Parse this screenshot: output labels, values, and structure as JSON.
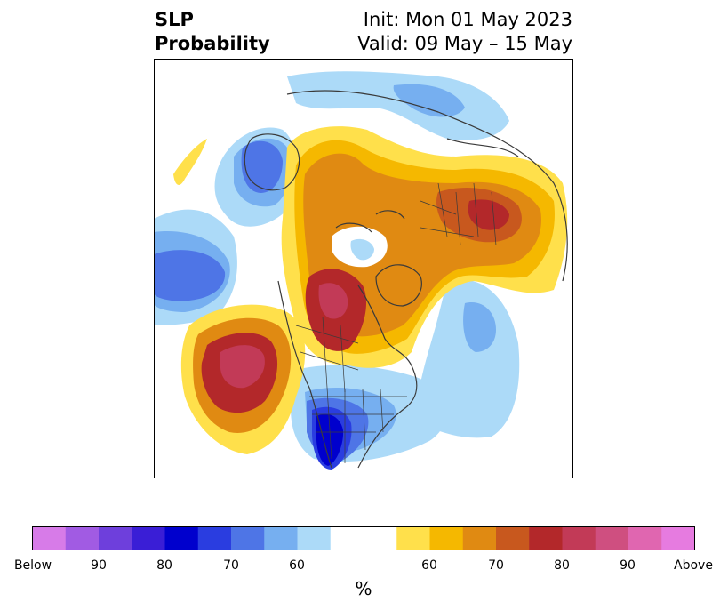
{
  "title": {
    "line1": "SLP",
    "line2": "Probability"
  },
  "info": {
    "init": "Init: Mon 01 May 2023",
    "valid": "Valid: 09 May – 15 May"
  },
  "colorbar": {
    "units": "%",
    "tick_labels": [
      "Below",
      "90",
      "80",
      "70",
      "60",
      "60",
      "70",
      "80",
      "90",
      "Above"
    ],
    "colors": [
      "#d77be8",
      "#a15be3",
      "#6e3fdc",
      "#3a1ed6",
      "#0000cd",
      "#2a3de0",
      "#4e75e6",
      "#76aff0",
      "#acdaf8",
      "#ffffff",
      "#ffffff",
      "#ffe04b",
      "#f5b800",
      "#e08a12",
      "#c8581e",
      "#b3282a",
      "#c23a57",
      "#cf4f80",
      "#e066b0",
      "#e67be0"
    ]
  },
  "legend_colors": {
    "below_60": "#acdaf8",
    "below_70": "#76aff0",
    "below_80": "#4e75e6",
    "below_90": "#2a3de0",
    "below_high": "#0000cd",
    "above_60": "#ffe04b",
    "above_70": "#f5b800",
    "above_80": "#e08a12",
    "above_90": "#c8581e",
    "above_high": "#b3282a",
    "above_max": "#c23a57"
  }
}
